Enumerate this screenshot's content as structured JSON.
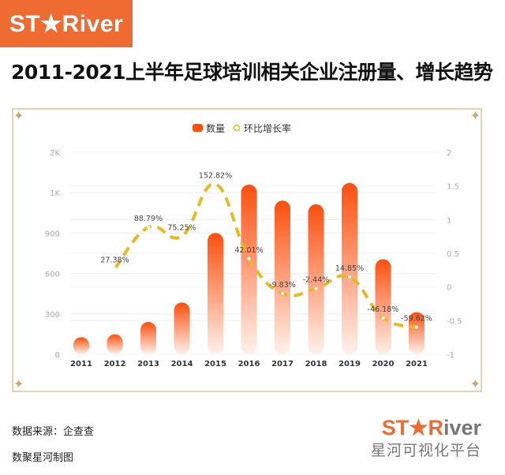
{
  "logo_top": "ST★River",
  "title": "2011-2021上半年足球培训相关企业注册量、增长趋势",
  "footer": {
    "source": "数据来源：企查查",
    "maker": "数聚星河制图",
    "logo_en_a": "ST★R",
    "logo_en_b": "iver",
    "logo_cn": "星河可视化平台"
  },
  "colors": {
    "bar_top": "#fb4f0e",
    "bar_bottom": "#fff2ec",
    "line": "#e8b923",
    "brand": "#ee6b32",
    "frame": "#e3d4b4"
  },
  "chart_data": {
    "type": "bar+line",
    "categories": [
      "2011",
      "2012",
      "2013",
      "2014",
      "2015",
      "2016",
      "2017",
      "2018",
      "2019",
      "2020",
      "2021"
    ],
    "legend_position": "top",
    "grid": true,
    "series": [
      {
        "name": "数量",
        "type": "bar",
        "axis": "left",
        "values": [
          80,
          102,
          193,
          338,
          854,
          1213,
          1094,
          1067,
          1225,
          659,
          266
        ]
      },
      {
        "name": "环比增长率",
        "type": "line",
        "axis": "right",
        "style": "dashed-smooth",
        "values": [
          null,
          0.2738,
          0.8879,
          0.7525,
          1.5282,
          0.4201,
          -0.0983,
          -0.0244,
          0.1485,
          -0.4618,
          -0.5962
        ],
        "labels": [
          "",
          "27.38%",
          "88.79%",
          "75.25%",
          "152.82%",
          "42.01%",
          "-9.83%",
          "-2.44%",
          "14.85%",
          "-46.18%",
          "-59.62%"
        ]
      }
    ],
    "left_axis": {
      "ylim": [
        0,
        1500
      ],
      "ticks": [
        0,
        300,
        600,
        900,
        1200,
        1500
      ],
      "tick_labels": [
        "0",
        "300",
        "600",
        "900",
        "1K",
        "2K"
      ]
    },
    "right_axis": {
      "ylim": [
        -1,
        2
      ],
      "ticks": [
        -1,
        -0.5,
        0,
        0.5,
        1,
        1.5,
        2
      ],
      "tick_labels": [
        "-1",
        "-0.5",
        "0",
        "0.5",
        "1",
        "1.5",
        "2"
      ]
    }
  }
}
